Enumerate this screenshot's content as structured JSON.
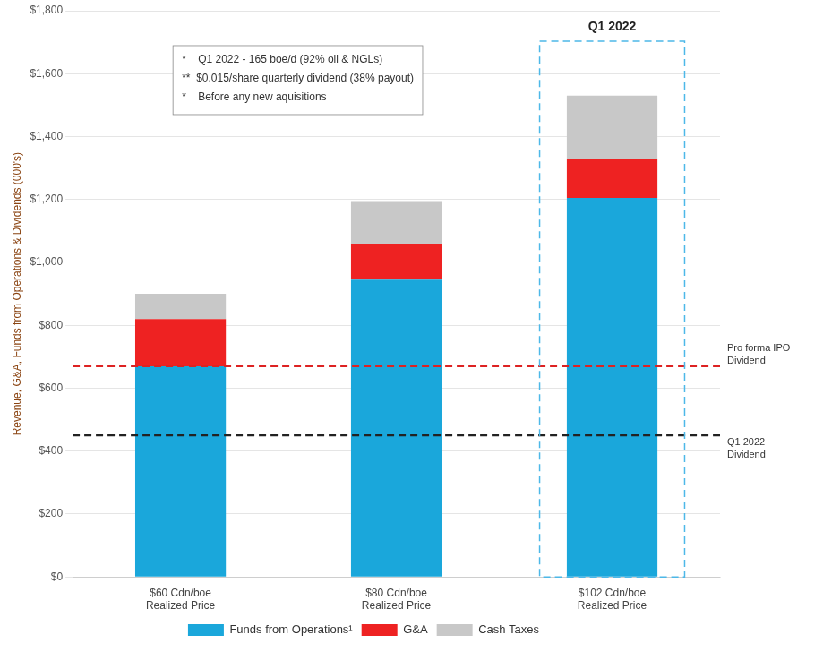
{
  "chart_data": {
    "type": "bar",
    "stacked": true,
    "categories": [
      "$60 Cdn/boe\nRealized Price",
      "$80 Cdn/boe\nRealized Price",
      "$102 Cdn/boe\nRealized Price"
    ],
    "series": [
      {
        "name": "Funds from Operations¹",
        "color": "#1aa7db",
        "values": [
          670,
          945,
          1205
        ]
      },
      {
        "name": "G&A",
        "color": "#ee2222",
        "values": [
          150,
          115,
          125
        ]
      },
      {
        "name": "Cash Taxes",
        "color": "#c8c8c8",
        "values": [
          80,
          135,
          200
        ]
      }
    ],
    "ylabel": "Revenue, G&A, Funds from Operations & Dividends (000's)",
    "ylim": [
      0,
      1800
    ],
    "yticks": [
      {
        "value": 0,
        "label": "$0"
      },
      {
        "value": 200,
        "label": "$200"
      },
      {
        "value": 400,
        "label": "$400"
      },
      {
        "value": 600,
        "label": "$600"
      },
      {
        "value": 800,
        "label": "$800"
      },
      {
        "value": 1000,
        "label": "$1,000"
      },
      {
        "value": 1200,
        "label": "$1,200"
      },
      {
        "value": 1400,
        "label": "$1,400"
      },
      {
        "value": 1600,
        "label": "$1,600"
      },
      {
        "value": 1800,
        "label": "$1,800"
      }
    ],
    "grid": true,
    "legend": "bottom",
    "reference_lines": [
      {
        "label": "Pro forma IPO\nDividend",
        "value": 670,
        "color": "#dd2222",
        "line_style": "dashed"
      },
      {
        "label": "Q1 2022\nDividend",
        "value": 450,
        "color": "#222222",
        "line_style": "dashed"
      }
    ],
    "highlight": {
      "category": "$102 Cdn/boe\nRealized Price",
      "label": "Q1 2022",
      "color": "#4db8e8",
      "line_style": "dashed"
    },
    "annotations": [
      "*    Q1 2022 - 165 boe/d (92% oil & NGLs)",
      "**  $0.015/share quarterly dividend (38% payout)",
      "*    Before any new aquisitions"
    ]
  }
}
